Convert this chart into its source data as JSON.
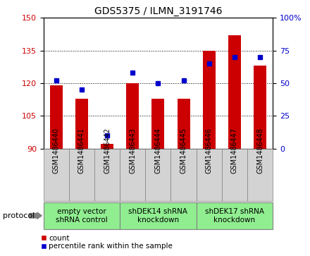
{
  "title": "GDS5375 / ILMN_3191746",
  "samples": [
    "GSM1486440",
    "GSM1486441",
    "GSM1486442",
    "GSM1486443",
    "GSM1486444",
    "GSM1486445",
    "GSM1486446",
    "GSM1486447",
    "GSM1486448"
  ],
  "count_values": [
    119,
    113,
    92,
    120,
    113,
    113,
    135,
    142,
    128
  ],
  "percentile_values": [
    52,
    45,
    10,
    58,
    50,
    52,
    65,
    70,
    70
  ],
  "ylim_left": [
    90,
    150
  ],
  "ylim_right": [
    0,
    100
  ],
  "yticks_left": [
    90,
    105,
    120,
    135,
    150
  ],
  "yticks_right": [
    0,
    25,
    50,
    75,
    100
  ],
  "bar_color": "#cc0000",
  "dot_color": "#0000cc",
  "protocol_groups": [
    {
      "label": "empty vector\nshRNA control",
      "start": 0,
      "end": 3
    },
    {
      "label": "shDEK14 shRNA\nknockdown",
      "start": 3,
      "end": 6
    },
    {
      "label": "shDEK17 shRNA\nknockdown",
      "start": 6,
      "end": 9
    }
  ],
  "protocol_label": "protocol",
  "legend_count_label": "count",
  "legend_percentile_label": "percentile rank within the sample",
  "bar_width": 0.5,
  "base_value": 90,
  "group_color": "#90ee90",
  "sample_box_color": "#d3d3d3",
  "title_fontsize": 10,
  "tick_fontsize": 7,
  "label_fontsize": 7.5
}
